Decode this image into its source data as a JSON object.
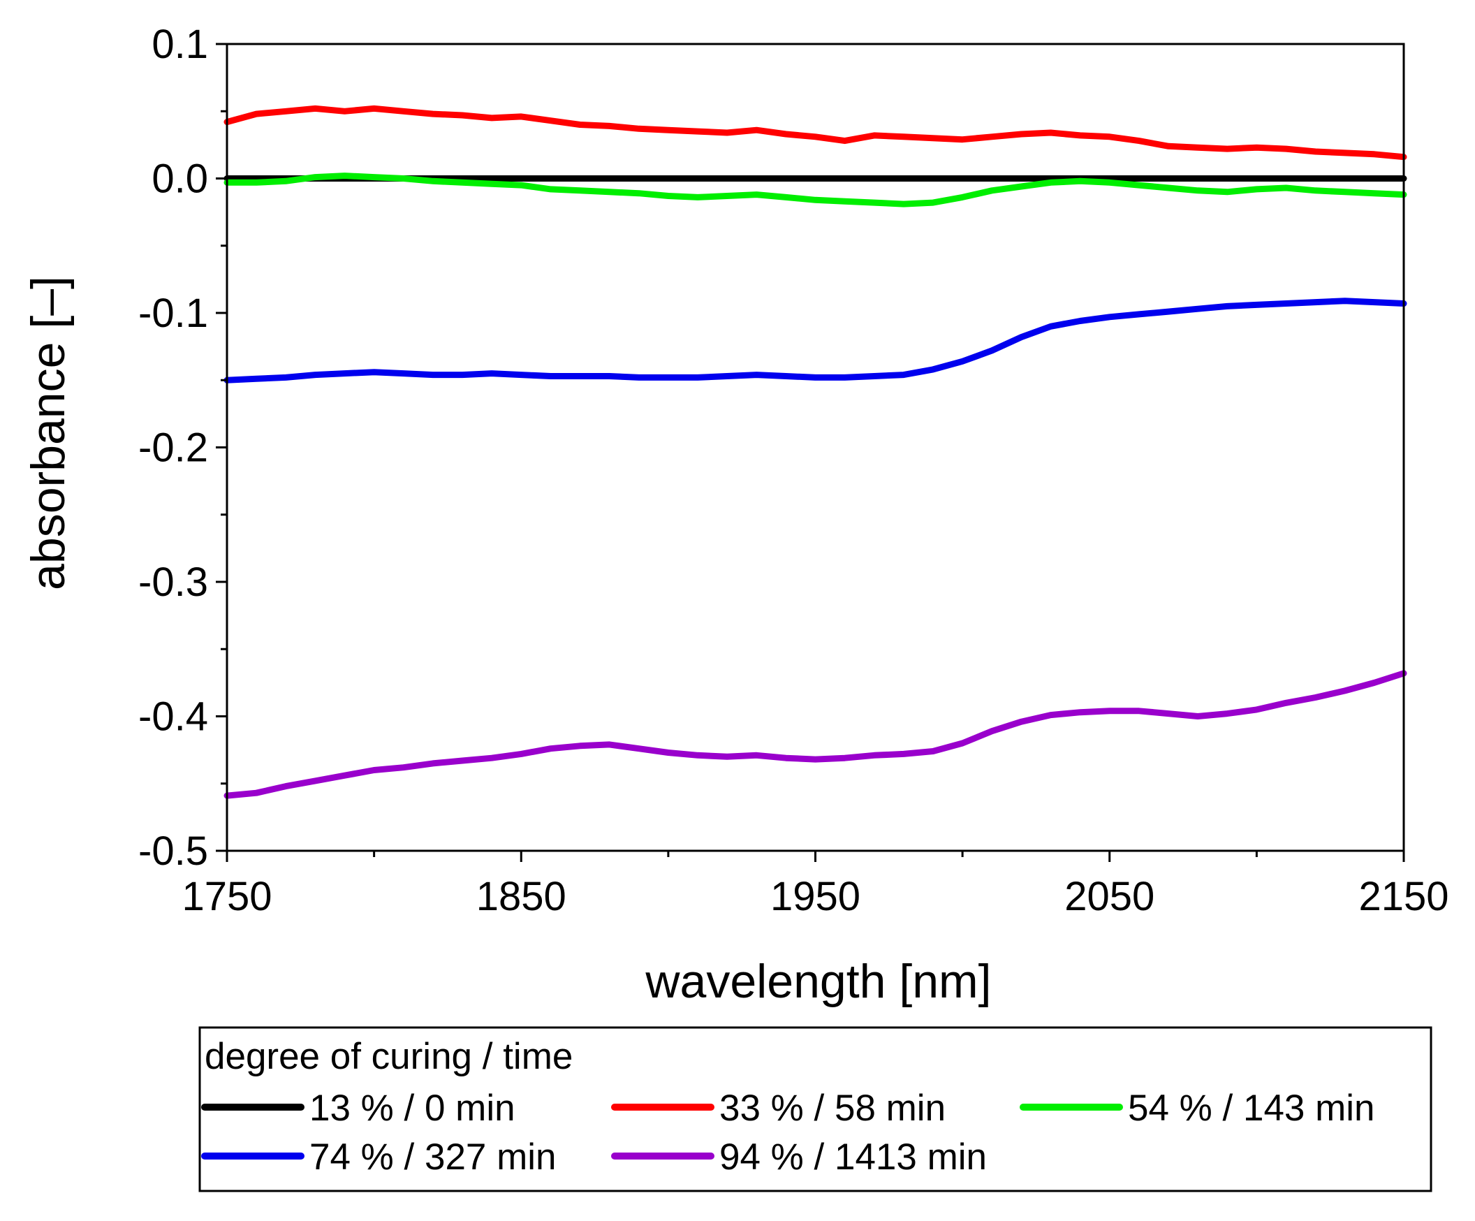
{
  "chart_data": {
    "type": "line",
    "title": "",
    "xlabel": "wavelength [nm]",
    "ylabel": "absorbance [–]",
    "xlim": [
      1750,
      2150
    ],
    "ylim": [
      -0.5,
      0.1
    ],
    "x_ticks": [
      1750,
      1850,
      1950,
      2050,
      2150
    ],
    "x_tick_labels": [
      "1750",
      "1850",
      "1950",
      "2050",
      "2150"
    ],
    "x_minor_ticks": [
      1800,
      1900,
      2000,
      2100
    ],
    "y_ticks": [
      0.1,
      0.0,
      -0.1,
      -0.2,
      -0.3,
      -0.4,
      -0.5
    ],
    "y_tick_labels": [
      "0.1",
      "0.0",
      "-0.1",
      "-0.2",
      "-0.3",
      "-0.4",
      "-0.5"
    ],
    "y_minor_ticks": [
      0.05,
      -0.05,
      -0.15,
      -0.25,
      -0.35,
      -0.45
    ],
    "grid": false,
    "legend": {
      "title": "degree of curing / time",
      "placement": "below"
    },
    "series": [
      {
        "name": "13 % / 0 min",
        "color": "#000000",
        "x": [
          1750,
          2150
        ],
        "y": [
          0.0,
          0.0
        ]
      },
      {
        "name": "33 % / 58 min",
        "color": "#ff0000",
        "x": [
          1750,
          1760,
          1770,
          1780,
          1790,
          1800,
          1810,
          1820,
          1830,
          1840,
          1850,
          1860,
          1870,
          1880,
          1890,
          1900,
          1910,
          1920,
          1930,
          1940,
          1950,
          1960,
          1970,
          1980,
          1990,
          2000,
          2010,
          2020,
          2030,
          2040,
          2050,
          2060,
          2070,
          2080,
          2090,
          2100,
          2110,
          2120,
          2130,
          2140,
          2150
        ],
        "y": [
          0.042,
          0.048,
          0.05,
          0.052,
          0.05,
          0.052,
          0.05,
          0.048,
          0.047,
          0.045,
          0.046,
          0.043,
          0.04,
          0.039,
          0.037,
          0.036,
          0.035,
          0.034,
          0.036,
          0.033,
          0.031,
          0.028,
          0.032,
          0.031,
          0.03,
          0.029,
          0.031,
          0.033,
          0.034,
          0.032,
          0.031,
          0.028,
          0.024,
          0.023,
          0.022,
          0.023,
          0.022,
          0.02,
          0.019,
          0.018,
          0.016
        ]
      },
      {
        "name": "54 % / 143 min",
        "color": "#00ee00",
        "x": [
          1750,
          1760,
          1770,
          1780,
          1790,
          1800,
          1810,
          1820,
          1830,
          1840,
          1850,
          1860,
          1870,
          1880,
          1890,
          1900,
          1910,
          1920,
          1930,
          1940,
          1950,
          1960,
          1970,
          1980,
          1990,
          2000,
          2010,
          2020,
          2030,
          2040,
          2050,
          2060,
          2070,
          2080,
          2090,
          2100,
          2110,
          2120,
          2130,
          2140,
          2150
        ],
        "y": [
          -0.003,
          -0.003,
          -0.002,
          0.001,
          0.002,
          0.001,
          0.0,
          -0.002,
          -0.003,
          -0.004,
          -0.005,
          -0.008,
          -0.009,
          -0.01,
          -0.011,
          -0.013,
          -0.014,
          -0.013,
          -0.012,
          -0.014,
          -0.016,
          -0.017,
          -0.018,
          -0.019,
          -0.018,
          -0.014,
          -0.009,
          -0.006,
          -0.003,
          -0.002,
          -0.003,
          -0.005,
          -0.007,
          -0.009,
          -0.01,
          -0.008,
          -0.007,
          -0.009,
          -0.01,
          -0.011,
          -0.012
        ]
      },
      {
        "name": "74 % / 327 min",
        "color": "#0000ee",
        "x": [
          1750,
          1760,
          1770,
          1780,
          1790,
          1800,
          1810,
          1820,
          1830,
          1840,
          1850,
          1860,
          1870,
          1880,
          1890,
          1900,
          1910,
          1920,
          1930,
          1940,
          1950,
          1960,
          1970,
          1980,
          1990,
          2000,
          2010,
          2020,
          2030,
          2040,
          2050,
          2060,
          2070,
          2080,
          2090,
          2100,
          2110,
          2120,
          2130,
          2140,
          2150
        ],
        "y": [
          -0.15,
          -0.149,
          -0.148,
          -0.146,
          -0.145,
          -0.144,
          -0.145,
          -0.146,
          -0.146,
          -0.145,
          -0.146,
          -0.147,
          -0.147,
          -0.147,
          -0.148,
          -0.148,
          -0.148,
          -0.147,
          -0.146,
          -0.147,
          -0.148,
          -0.148,
          -0.147,
          -0.146,
          -0.142,
          -0.136,
          -0.128,
          -0.118,
          -0.11,
          -0.106,
          -0.103,
          -0.101,
          -0.099,
          -0.097,
          -0.095,
          -0.094,
          -0.093,
          -0.092,
          -0.091,
          -0.092,
          -0.093
        ]
      },
      {
        "name": "94 % / 1413 min",
        "color": "#9900cc",
        "x": [
          1750,
          1760,
          1770,
          1780,
          1790,
          1800,
          1810,
          1820,
          1830,
          1840,
          1850,
          1860,
          1870,
          1880,
          1890,
          1900,
          1910,
          1920,
          1930,
          1940,
          1950,
          1960,
          1970,
          1980,
          1990,
          2000,
          2010,
          2020,
          2030,
          2040,
          2050,
          2060,
          2070,
          2080,
          2090,
          2100,
          2110,
          2120,
          2130,
          2140,
          2150
        ],
        "y": [
          -0.459,
          -0.457,
          -0.452,
          -0.448,
          -0.444,
          -0.44,
          -0.438,
          -0.435,
          -0.433,
          -0.431,
          -0.428,
          -0.424,
          -0.422,
          -0.421,
          -0.424,
          -0.427,
          -0.429,
          -0.43,
          -0.429,
          -0.431,
          -0.432,
          -0.431,
          -0.429,
          -0.428,
          -0.426,
          -0.42,
          -0.411,
          -0.404,
          -0.399,
          -0.397,
          -0.396,
          -0.396,
          -0.398,
          -0.4,
          -0.398,
          -0.395,
          -0.39,
          -0.386,
          -0.381,
          -0.375,
          -0.368
        ]
      }
    ]
  }
}
